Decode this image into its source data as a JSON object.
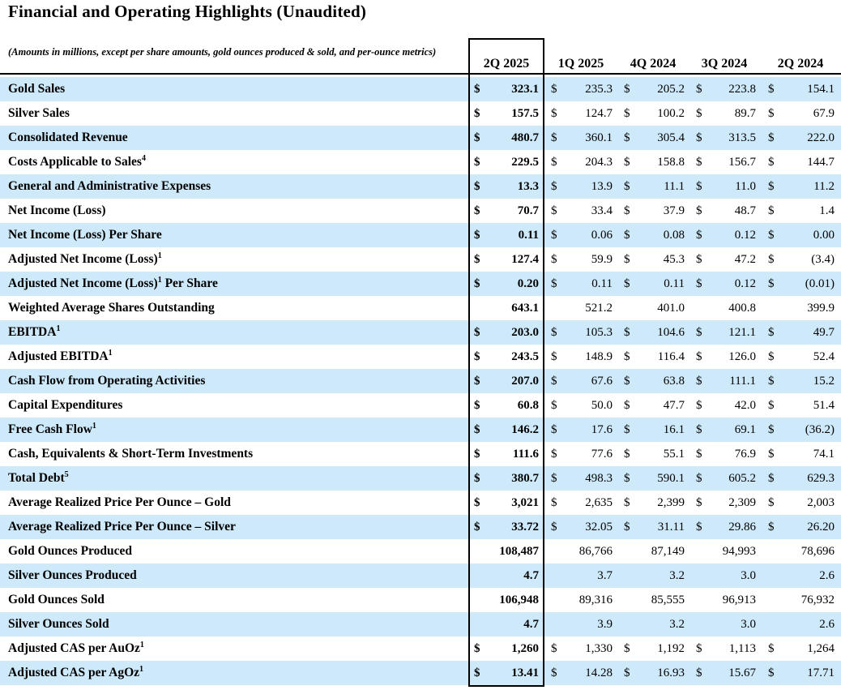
{
  "title": "Financial and Operating Highlights (Unaudited)",
  "note": "(Amounts in millions, except per share amounts, gold ounces produced & sold, and per-ounce metrics)",
  "columns": [
    "2Q 2025",
    "1Q 2025",
    "4Q 2024",
    "3Q 2024",
    "2Q 2024"
  ],
  "highlighted_column": "2Q 2025",
  "colors": {
    "row_highlight": "#cde9fa",
    "border": "#000000",
    "text": "#000000"
  },
  "rows": [
    {
      "label": "Gold Sales",
      "sup": "",
      "label_suffix": "",
      "currency": "$",
      "values": [
        "323.1",
        "235.3",
        "205.2",
        "223.8",
        "154.1"
      ]
    },
    {
      "label": "Silver Sales",
      "sup": "",
      "label_suffix": "",
      "currency": "$",
      "values": [
        "157.5",
        "124.7",
        "100.2",
        "89.7",
        "67.9"
      ]
    },
    {
      "label": "Consolidated Revenue",
      "sup": "",
      "label_suffix": "",
      "currency": "$",
      "values": [
        "480.7",
        "360.1",
        "305.4",
        "313.5",
        "222.0"
      ]
    },
    {
      "label": "Costs Applicable to Sales",
      "sup": "4",
      "label_suffix": "",
      "currency": "$",
      "values": [
        "229.5",
        "204.3",
        "158.8",
        "156.7",
        "144.7"
      ]
    },
    {
      "label": "General and Administrative Expenses",
      "sup": "",
      "label_suffix": "",
      "currency": "$",
      "values": [
        "13.3",
        "13.9",
        "11.1",
        "11.0",
        "11.2"
      ]
    },
    {
      "label": "Net Income (Loss)",
      "sup": "",
      "label_suffix": "",
      "currency": "$",
      "values": [
        "70.7",
        "33.4",
        "37.9",
        "48.7",
        "1.4"
      ]
    },
    {
      "label": "Net Income (Loss) Per Share",
      "sup": "",
      "label_suffix": "",
      "currency": "$",
      "values": [
        "0.11",
        "0.06",
        "0.08",
        "0.12",
        "0.00"
      ]
    },
    {
      "label": "Adjusted Net Income (Loss)",
      "sup": "1",
      "label_suffix": "",
      "currency": "$",
      "values": [
        "127.4",
        "59.9",
        "45.3",
        "47.2",
        "(3.4)"
      ]
    },
    {
      "label": "Adjusted Net Income (Loss)",
      "sup": "1",
      "label_suffix": " Per Share",
      "currency": "$",
      "values": [
        "0.20",
        "0.11",
        "0.11",
        "0.12",
        "(0.01)"
      ]
    },
    {
      "label": "Weighted Average Shares Outstanding",
      "sup": "",
      "label_suffix": "",
      "currency": "",
      "values": [
        "643.1",
        "521.2",
        "401.0",
        "400.8",
        "399.9"
      ]
    },
    {
      "label": "EBITDA",
      "sup": "1",
      "label_suffix": "",
      "currency": "$",
      "values": [
        "203.0",
        "105.3",
        "104.6",
        "121.1",
        "49.7"
      ]
    },
    {
      "label": "Adjusted EBITDA",
      "sup": "1",
      "label_suffix": "",
      "currency": "$",
      "values": [
        "243.5",
        "148.9",
        "116.4",
        "126.0",
        "52.4"
      ]
    },
    {
      "label": "Cash Flow from Operating Activities",
      "sup": "",
      "label_suffix": "",
      "currency": "$",
      "values": [
        "207.0",
        "67.6",
        "63.8",
        "111.1",
        "15.2"
      ]
    },
    {
      "label": "Capital Expenditures",
      "sup": "",
      "label_suffix": "",
      "currency": "$",
      "values": [
        "60.8",
        "50.0",
        "47.7",
        "42.0",
        "51.4"
      ]
    },
    {
      "label": "Free Cash Flow",
      "sup": "1",
      "label_suffix": "",
      "currency": "$",
      "values": [
        "146.2",
        "17.6",
        "16.1",
        "69.1",
        "(36.2)"
      ]
    },
    {
      "label": "Cash, Equivalents & Short-Term Investments",
      "sup": "",
      "label_suffix": "",
      "currency": "$",
      "values": [
        "111.6",
        "77.6",
        "55.1",
        "76.9",
        "74.1"
      ]
    },
    {
      "label": "Total Debt",
      "sup": "5",
      "label_suffix": "",
      "currency": "$",
      "values": [
        "380.7",
        "498.3",
        "590.1",
        "605.2",
        "629.3"
      ]
    },
    {
      "label": "Average Realized Price Per Ounce – Gold",
      "sup": "",
      "label_suffix": "",
      "currency": "$",
      "values": [
        "3,021",
        "2,635",
        "2,399",
        "2,309",
        "2,003"
      ]
    },
    {
      "label": "Average Realized Price Per Ounce – Silver",
      "sup": "",
      "label_suffix": "",
      "currency": "$",
      "values": [
        "33.72",
        "32.05",
        "31.11",
        "29.86",
        "26.20"
      ]
    },
    {
      "label": "Gold Ounces Produced",
      "sup": "",
      "label_suffix": "",
      "currency": "",
      "values": [
        "108,487",
        "86,766",
        "87,149",
        "94,993",
        "78,696"
      ]
    },
    {
      "label": "Silver Ounces Produced",
      "sup": "",
      "label_suffix": "",
      "currency": "",
      "values": [
        "4.7",
        "3.7",
        "3.2",
        "3.0",
        "2.6"
      ]
    },
    {
      "label": "Gold Ounces Sold",
      "sup": "",
      "label_suffix": "",
      "currency": "",
      "values": [
        "106,948",
        "89,316",
        "85,555",
        "96,913",
        "76,932"
      ]
    },
    {
      "label": "Silver Ounces Sold",
      "sup": "",
      "label_suffix": "",
      "currency": "",
      "values": [
        "4.7",
        "3.9",
        "3.2",
        "3.0",
        "2.6"
      ]
    },
    {
      "label": "Adjusted CAS per AuOz",
      "sup": "1",
      "label_suffix": "",
      "currency": "$",
      "values": [
        "1,260",
        "1,330",
        "1,192",
        "1,113",
        "1,264"
      ]
    },
    {
      "label": "Adjusted CAS per AgOz",
      "sup": "1",
      "label_suffix": "",
      "currency": "$",
      "values": [
        "13.41",
        "14.28",
        "16.93",
        "15.67",
        "17.71"
      ]
    }
  ]
}
